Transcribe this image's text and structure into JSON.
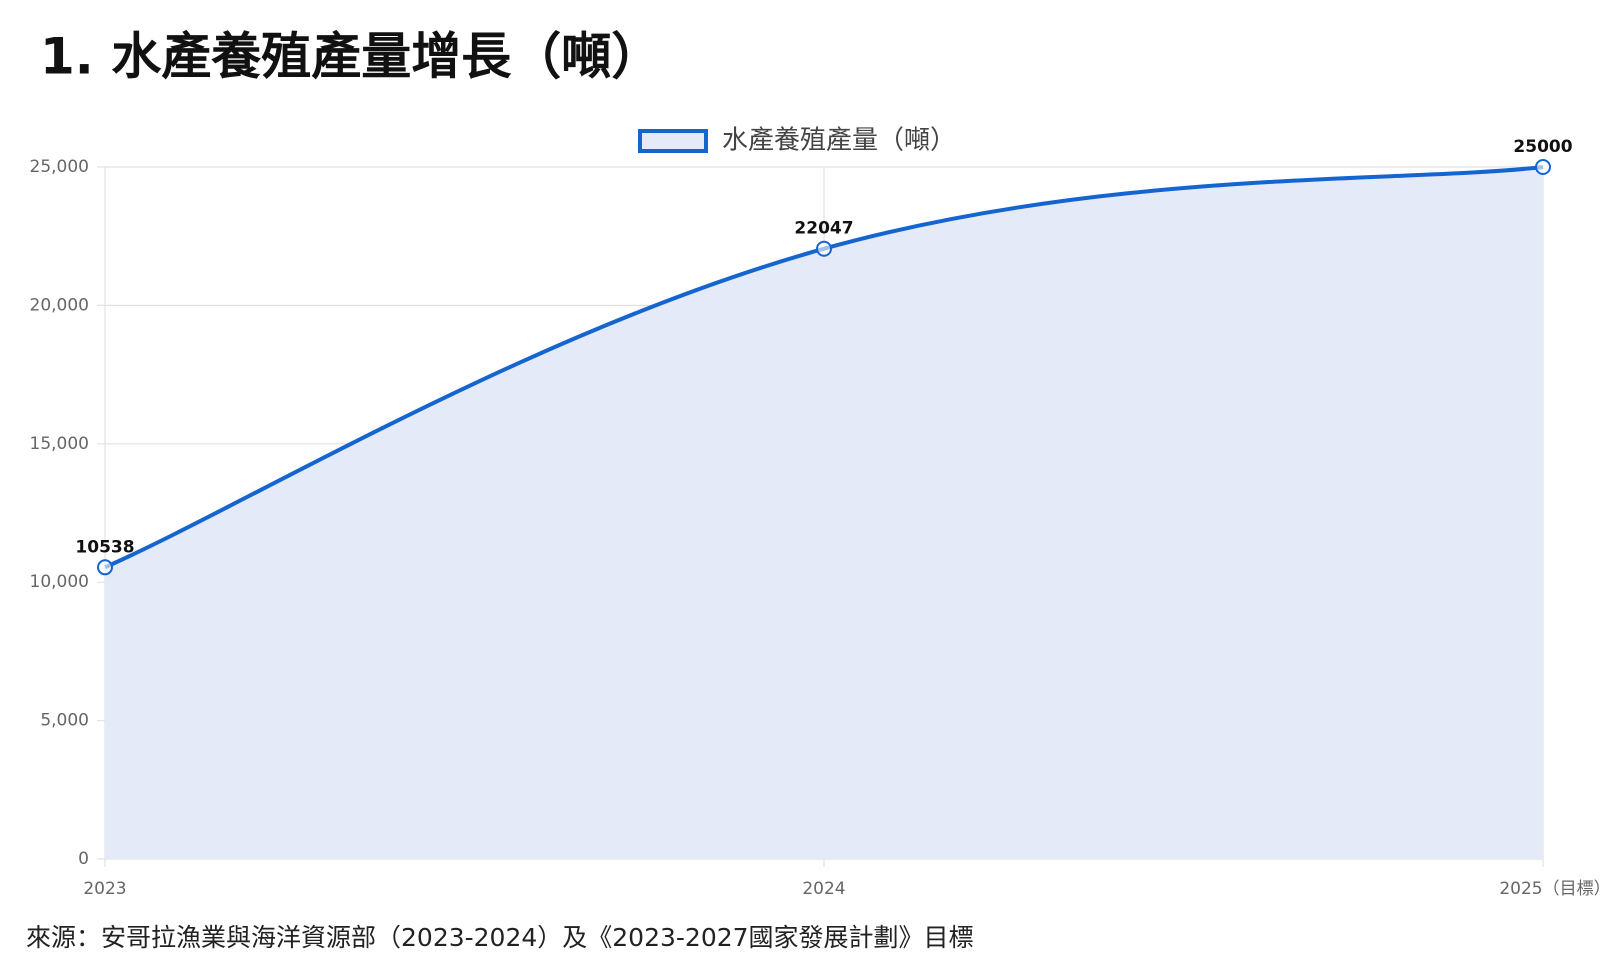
{
  "chart_data": {
    "type": "line",
    "title": "1. 水產養殖產量增長（噸）",
    "categories": [
      "2023",
      "2024",
      "2025（目標）"
    ],
    "series": [
      {
        "name": "水產養殖產量（噸）",
        "color": "#1565d0",
        "fill": "#e4eaf8",
        "values": [
          10538,
          22047,
          25000
        ]
      }
    ],
    "ylim": [
      0,
      25000
    ],
    "yticks": [
      0,
      {
        "value": 5000,
        "label": "5,000"
      },
      {
        "value": 10000,
        "label": "10,000"
      },
      {
        "value": 15000,
        "label": "15,000"
      },
      {
        "value": 20000,
        "label": "20,000"
      },
      {
        "value": 25000,
        "label": "25,000"
      }
    ],
    "grid": true,
    "legend": "top",
    "source": "來源：安哥拉漁業與海洋資源部（2023-2024）及《2023-2027國家發展計劃》目標"
  }
}
